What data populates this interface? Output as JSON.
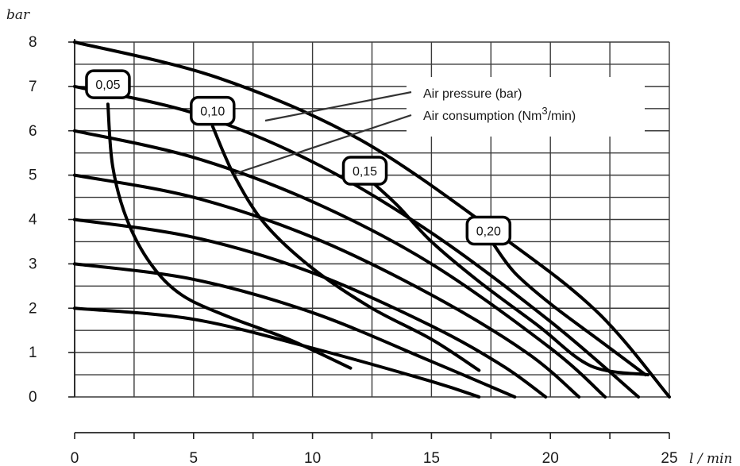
{
  "chart_data": {
    "type": "line",
    "title": "",
    "xlabel": "l / min",
    "ylabel": "bar",
    "xlim": [
      0,
      25
    ],
    "ylim": [
      0,
      8
    ],
    "x_ticks": [
      "0",
      "5",
      "10",
      "15",
      "20",
      "25"
    ],
    "y_ticks": [
      "0",
      "1",
      "2",
      "3",
      "4",
      "5",
      "6",
      "7",
      "8"
    ],
    "grid": true,
    "legend": {
      "air_pressure": "Air pressure (bar)",
      "air_consumption_prefix": "Air consumption  (Nm",
      "air_consumption_sup": "3",
      "air_consumption_suffix": "/min)",
      "placement": "top-right"
    },
    "pressure_series": [
      {
        "points": [
          [
            0,
            8
          ],
          [
            6,
            7.2
          ],
          [
            12,
            5.8
          ],
          [
            18,
            3.6
          ],
          [
            22,
            1.9
          ],
          [
            25,
            0
          ]
        ]
      },
      {
        "points": [
          [
            0,
            7
          ],
          [
            5,
            6.4
          ],
          [
            10,
            5.3
          ],
          [
            15,
            3.7
          ],
          [
            20,
            1.7
          ],
          [
            23.7,
            0
          ]
        ]
      },
      {
        "points": [
          [
            0,
            6
          ],
          [
            5,
            5.4
          ],
          [
            10,
            4.4
          ],
          [
            15,
            3
          ],
          [
            20,
            1.1
          ],
          [
            22.3,
            0
          ]
        ]
      },
      {
        "points": [
          [
            0,
            5
          ],
          [
            5,
            4.5
          ],
          [
            10,
            3.6
          ],
          [
            15,
            2.3
          ],
          [
            19,
            1
          ],
          [
            21.2,
            0
          ]
        ]
      },
      {
        "points": [
          [
            0,
            4
          ],
          [
            5,
            3.6
          ],
          [
            10,
            2.8
          ],
          [
            15,
            1.6
          ],
          [
            18,
            0.7
          ],
          [
            19.8,
            0
          ]
        ]
      },
      {
        "points": [
          [
            0,
            3
          ],
          [
            5,
            2.65
          ],
          [
            10,
            1.9
          ],
          [
            15,
            0.8
          ],
          [
            18.5,
            0
          ]
        ]
      },
      {
        "points": [
          [
            0,
            2
          ],
          [
            5,
            1.75
          ],
          [
            10,
            1.1
          ],
          [
            15,
            0.35
          ],
          [
            17,
            0
          ]
        ]
      }
    ],
    "consumption_series": [
      {
        "label": "0,05",
        "points": [
          [
            1.4,
            6.6
          ],
          [
            1.6,
            5.2
          ],
          [
            2.2,
            4
          ],
          [
            3.2,
            3
          ],
          [
            4.5,
            2.3
          ],
          [
            6.5,
            1.8
          ],
          [
            9,
            1.3
          ],
          [
            11.6,
            0.65
          ]
        ]
      },
      {
        "label": "0,10",
        "points": [
          [
            5.8,
            6.1
          ],
          [
            6.7,
            5
          ],
          [
            8,
            3.9
          ],
          [
            10,
            2.9
          ],
          [
            12.5,
            2
          ],
          [
            15,
            1.3
          ],
          [
            17,
            0.6
          ]
        ]
      },
      {
        "label": "0,15",
        "points": [
          [
            12.6,
            4.8
          ],
          [
            13.6,
            4.3
          ],
          [
            15,
            3.5
          ],
          [
            17,
            2.6
          ],
          [
            19.5,
            1.6
          ],
          [
            21.7,
            0.7
          ],
          [
            24.1,
            0.5
          ]
        ]
      },
      {
        "label": "0,20",
        "points": [
          [
            17.6,
            3.45
          ],
          [
            18.5,
            2.8
          ],
          [
            20,
            2.1
          ],
          [
            22,
            1.3
          ],
          [
            24,
            0.5
          ]
        ]
      }
    ],
    "badges": [
      {
        "text": "0,05",
        "x": 1.4,
        "y": 7.05
      },
      {
        "text": "0,10",
        "x": 5.8,
        "y": 6.45
      },
      {
        "text": "0,15",
        "x": 12.2,
        "y": 5.1
      },
      {
        "text": "0,20",
        "x": 17.4,
        "y": 3.75
      }
    ]
  }
}
